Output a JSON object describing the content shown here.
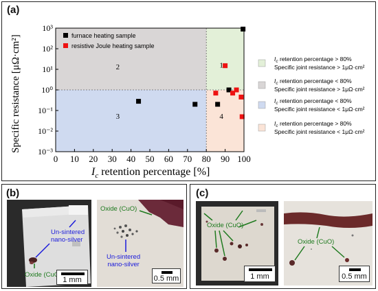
{
  "panels": {
    "a": "(a)",
    "b": "(b)",
    "c": "(c)"
  },
  "chart_data": {
    "type": "scatter",
    "xlabel_italic": "I",
    "xlabel_sub": "c",
    "xlabel_rest": " retention percentage [%]",
    "ylabel": "Specific resistance [μΩ·cm²]",
    "xlim": [
      0,
      100
    ],
    "ylim_log10": [
      -3,
      3
    ],
    "y_scale": "log",
    "x_ticks": [
      0,
      10,
      20,
      30,
      40,
      50,
      60,
      70,
      80,
      90,
      100
    ],
    "y_ticks": [
      "10⁻³",
      "10⁻²",
      "10⁻¹",
      "10⁰",
      "10¹",
      "10²",
      "10³"
    ],
    "x_split": 80,
    "y_split": 1,
    "region_labels": [
      {
        "text": "1"
      },
      {
        "text": "2"
      },
      {
        "text": "3"
      },
      {
        "text": "4"
      }
    ],
    "series": [
      {
        "name": "furnace heating sample",
        "color": "#000000",
        "points": [
          {
            "x": 44,
            "y": 0.28
          },
          {
            "x": 74,
            "y": 0.2
          },
          {
            "x": 86,
            "y": 0.2
          },
          {
            "x": 92,
            "y": 1.0
          },
          {
            "x": 99.5,
            "y": 900
          }
        ]
      },
      {
        "name": "resistive Joule heating sample",
        "color": "#ee1111",
        "points": [
          {
            "x": 90,
            "y": 15
          },
          {
            "x": 85,
            "y": 0.7
          },
          {
            "x": 94,
            "y": 0.7
          },
          {
            "x": 96,
            "y": 1.0
          },
          {
            "x": 98.5,
            "y": 0.45
          },
          {
            "x": 99,
            "y": 0.05
          }
        ]
      }
    ],
    "regions": [
      {
        "color": "#e3f0d8",
        "line1_rest": " retention percentage > 80%",
        "line2": "Specific joint resistance > 1μΩ·cm²"
      },
      {
        "color": "#d9d6d6",
        "line1_rest": " retention percentage < 80%",
        "line2": "Specific joint resistance > 1μΩ·cm²"
      },
      {
        "color": "#cfdaf0",
        "line1_rest": " retention percentage < 80%",
        "line2": "Specific joint resistance < 1μΩ·cm²"
      },
      {
        "color": "#fbe4d7",
        "line1_rest": " retention percentage > 80%",
        "line2": "Specific joint resistance < 1μΩ·cm²"
      }
    ],
    "region_key_italic": "I",
    "region_key_sub": "c"
  },
  "photos_b": {
    "left_tags": [
      "Un-sintered",
      "nano-silver",
      "Oxide (CuO)"
    ],
    "left_scale": "1 mm",
    "right_tags": [
      "Oxide (CuO)",
      "Un-sintered",
      "nano-silver"
    ],
    "right_scale": "0.5 mm"
  },
  "photos_c": {
    "left_tag": "Oxide (CuO)",
    "left_scale": "1 mm",
    "right_tag": "Oxide (CuO)",
    "right_scale": "0.5 mm"
  },
  "colors": {
    "blue_annotation": "#1a1adb",
    "green_annotation": "#1f7a1f"
  }
}
